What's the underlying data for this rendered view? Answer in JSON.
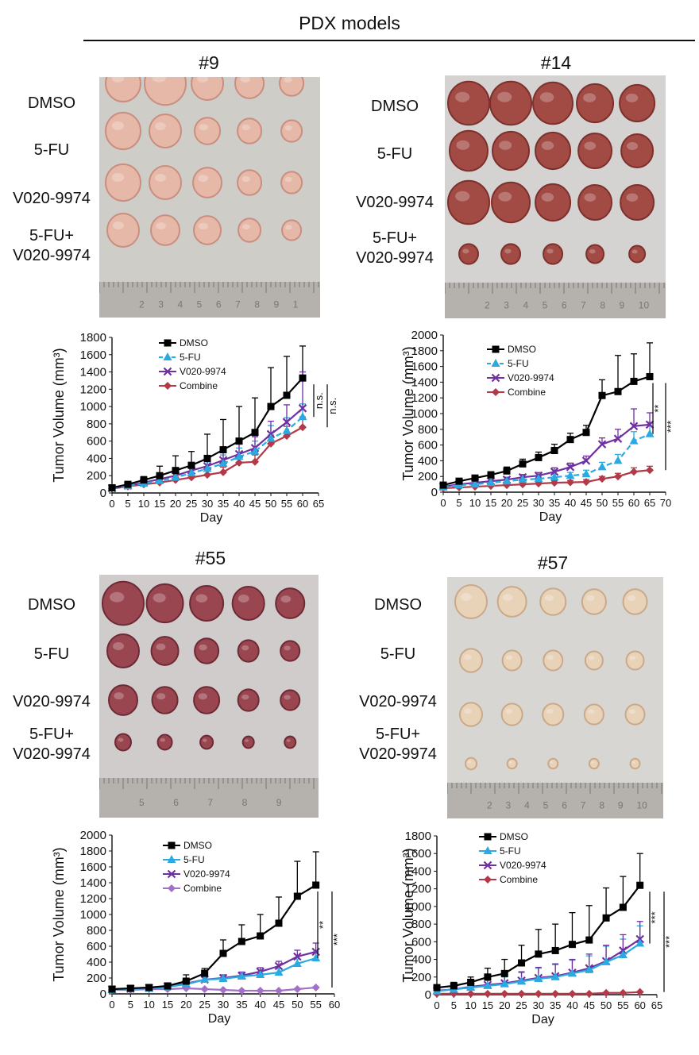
{
  "figure": {
    "header": "PDX models",
    "row_labels": [
      "DMSO",
      "5-FU",
      "V020-9974",
      "5-FU+",
      "V020-9974"
    ]
  },
  "panels": [
    {
      "id": "9",
      "title": "#9",
      "photo": {
        "tissue_color": "#e6b8a8",
        "tissue_edge": "#c98e80",
        "background": "#cfcdc8",
        "ruler_numbers": [
          "2",
          "3",
          "4",
          "5",
          "6",
          "7",
          "8",
          "9",
          "1"
        ]
      }
    },
    {
      "id": "14",
      "title": "#14",
      "photo": {
        "tissue_color": "#a24a44",
        "tissue_edge": "#7d302c",
        "background": "#d4d3d2",
        "ruler_numbers": [
          "2",
          "3",
          "4",
          "5",
          "6",
          "7",
          "8",
          "9",
          "10"
        ]
      }
    },
    {
      "id": "55",
      "title": "#55",
      "photo": {
        "tissue_color": "#9a4650",
        "tissue_edge": "#6e2a34",
        "background": "#cfcccb",
        "ruler_numbers": [
          "5",
          "6",
          "7",
          "8",
          "9"
        ]
      }
    },
    {
      "id": "57",
      "title": "#57",
      "photo": {
        "tissue_color": "#e8d2b8",
        "tissue_edge": "#c9a98a",
        "background": "#d8d6d2",
        "ruler_numbers": [
          "2",
          "3",
          "4",
          "5",
          "6",
          "7",
          "8",
          "9",
          "10"
        ]
      }
    }
  ],
  "chart_data": [
    {
      "panel": "#9",
      "type": "line",
      "title": "",
      "xlabel": "Day",
      "ylabel": "Tumor Volume (mm³)",
      "xlim": [
        0,
        65
      ],
      "ylim": [
        0,
        1800
      ],
      "xticks": [
        0,
        5,
        10,
        15,
        20,
        25,
        30,
        35,
        40,
        45,
        50,
        55,
        60,
        65
      ],
      "yticks": [
        0,
        200,
        400,
        600,
        800,
        1000,
        1200,
        1400,
        1600,
        1800
      ],
      "x": [
        0,
        5,
        10,
        15,
        20,
        25,
        30,
        35,
        40,
        45,
        50,
        55,
        60
      ],
      "series": [
        {
          "name": "DMSO",
          "color": "#000000",
          "marker": "square",
          "dash": false,
          "values": [
            60,
            100,
            150,
            200,
            260,
            320,
            400,
            500,
            600,
            700,
            1000,
            1130,
            1330
          ],
          "errors": [
            20,
            30,
            40,
            110,
            170,
            160,
            280,
            350,
            400,
            400,
            450,
            450,
            370
          ]
        },
        {
          "name": "5-FU",
          "color": "#29abe2",
          "marker": "triangle",
          "dash": true,
          "values": [
            55,
            80,
            110,
            140,
            180,
            230,
            280,
            340,
            420,
            480,
            630,
            720,
            880
          ],
          "errors": [
            20,
            30,
            30,
            40,
            50,
            70,
            80,
            100,
            100,
            120,
            150,
            150,
            150
          ]
        },
        {
          "name": "V020-9974",
          "color": "#7030a0",
          "marker": "x",
          "dash": false,
          "values": [
            55,
            85,
            120,
            160,
            200,
            260,
            310,
            380,
            450,
            520,
            680,
            820,
            980
          ],
          "errors": [
            20,
            30,
            40,
            50,
            60,
            80,
            90,
            110,
            120,
            130,
            150,
            200,
            420
          ]
        },
        {
          "name": "Combine",
          "color": "#b23a48",
          "marker": "diamond",
          "dash": false,
          "values": [
            50,
            75,
            100,
            120,
            150,
            180,
            210,
            240,
            350,
            360,
            570,
            660,
            760
          ],
          "errors": [
            15,
            20,
            25,
            30,
            35,
            40,
            50,
            60,
            70,
            80,
            100,
            110,
            120
          ]
        }
      ],
      "significance": [
        {
          "label": "n.s.",
          "from": "5-FU",
          "to": "DMSO"
        },
        {
          "label": "n.s.",
          "from": "Combine",
          "to": "DMSO"
        }
      ]
    },
    {
      "panel": "#14",
      "type": "line",
      "title": "",
      "xlabel": "Day",
      "ylabel": "Tumor Volume (mm³)",
      "xlim": [
        0,
        70
      ],
      "ylim": [
        0,
        2000
      ],
      "xticks": [
        0,
        5,
        10,
        15,
        20,
        25,
        30,
        35,
        40,
        45,
        50,
        55,
        60,
        65,
        70
      ],
      "yticks": [
        0,
        200,
        400,
        600,
        800,
        1000,
        1200,
        1400,
        1600,
        1800,
        2000
      ],
      "x": [
        0,
        5,
        10,
        15,
        20,
        25,
        30,
        35,
        40,
        45,
        50,
        55,
        60,
        65
      ],
      "series": [
        {
          "name": "DMSO",
          "color": "#000000",
          "marker": "square",
          "dash": false,
          "values": [
            90,
            140,
            180,
            220,
            270,
            360,
            440,
            530,
            670,
            760,
            1230,
            1280,
            1410,
            1470
          ],
          "errors": [
            20,
            20,
            30,
            40,
            50,
            60,
            70,
            80,
            80,
            90,
            200,
            460,
            350,
            430
          ]
        },
        {
          "name": "5-FU",
          "color": "#29abe2",
          "marker": "triangle",
          "dash": true,
          "values": [
            60,
            90,
            100,
            120,
            140,
            160,
            170,
            190,
            210,
            230,
            320,
            400,
            650,
            740
          ],
          "errors": [
            15,
            20,
            20,
            25,
            25,
            30,
            30,
            40,
            40,
            50,
            60,
            80,
            120,
            150
          ]
        },
        {
          "name": "V020-9974",
          "color": "#7030a0",
          "marker": "x",
          "dash": false,
          "values": [
            70,
            100,
            120,
            140,
            160,
            190,
            210,
            260,
            320,
            400,
            610,
            680,
            840,
            860
          ],
          "errors": [
            15,
            20,
            20,
            25,
            30,
            35,
            40,
            50,
            50,
            60,
            80,
            120,
            220,
            150
          ]
        },
        {
          "name": "Combine",
          "color": "#b23a48",
          "marker": "diamond",
          "dash": false,
          "values": [
            50,
            60,
            70,
            80,
            90,
            100,
            110,
            120,
            125,
            130,
            170,
            200,
            260,
            280
          ],
          "errors": [
            10,
            10,
            15,
            15,
            20,
            20,
            20,
            25,
            25,
            30,
            30,
            40,
            50,
            50
          ]
        }
      ],
      "significance": [
        {
          "label": "**",
          "from": "5-FU",
          "to": "DMSO"
        },
        {
          "label": "***",
          "from": "Combine",
          "to": "DMSO"
        }
      ]
    },
    {
      "panel": "#55",
      "type": "line",
      "title": "",
      "xlabel": "Day",
      "ylabel": "Tumor Volume (mm³)",
      "xlim": [
        0,
        60
      ],
      "ylim": [
        0,
        2000
      ],
      "xticks": [
        0,
        5,
        10,
        15,
        20,
        25,
        30,
        35,
        40,
        45,
        50,
        55,
        60
      ],
      "yticks": [
        0,
        200,
        400,
        600,
        800,
        1000,
        1200,
        1400,
        1600,
        1800,
        2000
      ],
      "x": [
        0,
        5,
        10,
        15,
        20,
        25,
        30,
        35,
        40,
        45,
        50,
        55
      ],
      "series": [
        {
          "name": "DMSO",
          "color": "#000000",
          "marker": "square",
          "dash": false,
          "values": [
            60,
            70,
            80,
            100,
            160,
            260,
            510,
            660,
            730,
            890,
            1230,
            1370
          ],
          "errors": [
            10,
            15,
            20,
            30,
            80,
            60,
            170,
            210,
            270,
            330,
            440,
            420
          ]
        },
        {
          "name": "5-FU",
          "color": "#29abe2",
          "marker": "triangle",
          "dash": false,
          "values": [
            50,
            60,
            70,
            90,
            120,
            180,
            190,
            220,
            240,
            270,
            380,
            450
          ],
          "errors": [
            10,
            10,
            15,
            20,
            30,
            30,
            35,
            40,
            40,
            50,
            60,
            80
          ]
        },
        {
          "name": "V020-9974",
          "color": "#7030a0",
          "marker": "x",
          "dash": false,
          "values": [
            55,
            65,
            75,
            95,
            130,
            180,
            200,
            230,
            280,
            350,
            470,
            530
          ],
          "errors": [
            10,
            10,
            15,
            20,
            30,
            35,
            40,
            45,
            50,
            60,
            80,
            110
          ]
        },
        {
          "name": "Combine",
          "color": "#a370c8",
          "marker": "diamond",
          "dash": false,
          "values": [
            50,
            50,
            60,
            60,
            70,
            60,
            50,
            40,
            40,
            40,
            60,
            80
          ],
          "errors": [
            5,
            5,
            5,
            5,
            5,
            5,
            5,
            5,
            5,
            5,
            10,
            10
          ]
        }
      ],
      "significance": [
        {
          "label": "**",
          "from": "5-FU",
          "to": "DMSO"
        },
        {
          "label": "***",
          "from": "Combine",
          "to": "DMSO"
        }
      ]
    },
    {
      "panel": "#57",
      "type": "line",
      "title": "",
      "xlabel": "Day",
      "ylabel": "Tumor Volume (mm³)",
      "xlim": [
        0,
        65
      ],
      "ylim": [
        0,
        1800
      ],
      "xticks": [
        0,
        5,
        10,
        15,
        20,
        25,
        30,
        35,
        40,
        45,
        50,
        55,
        60,
        65
      ],
      "yticks": [
        0,
        200,
        400,
        600,
        800,
        1000,
        1200,
        1400,
        1600,
        1800
      ],
      "x": [
        0,
        5,
        10,
        15,
        20,
        25,
        30,
        35,
        40,
        45,
        50,
        55,
        60
      ],
      "series": [
        {
          "name": "DMSO",
          "color": "#000000",
          "marker": "square",
          "dash": false,
          "values": [
            80,
            100,
            140,
            200,
            240,
            360,
            460,
            500,
            570,
            620,
            870,
            990,
            1240
          ],
          "errors": [
            20,
            40,
            60,
            100,
            160,
            200,
            280,
            300,
            360,
            390,
            340,
            350,
            360
          ]
        },
        {
          "name": "5-FU",
          "color": "#29abe2",
          "marker": "triangle",
          "dash": false,
          "values": [
            40,
            60,
            80,
            100,
            120,
            150,
            180,
            200,
            240,
            280,
            370,
            450,
            580
          ],
          "errors": [
            20,
            30,
            40,
            60,
            80,
            100,
            120,
            140,
            150,
            160,
            180,
            180,
            200
          ]
        },
        {
          "name": "V020-9974",
          "color": "#7030a0",
          "marker": "x",
          "dash": false,
          "values": [
            45,
            60,
            90,
            110,
            130,
            160,
            190,
            210,
            250,
            300,
            380,
            500,
            630
          ],
          "errors": [
            20,
            30,
            40,
            60,
            80,
            100,
            120,
            140,
            150,
            160,
            180,
            180,
            200
          ]
        },
        {
          "name": "Combine",
          "color": "#b23a48",
          "marker": "diamond",
          "dash": false,
          "values": [
            10,
            10,
            10,
            10,
            10,
            10,
            10,
            10,
            10,
            10,
            20,
            20,
            30
          ],
          "errors": [
            5,
            5,
            5,
            5,
            5,
            5,
            5,
            5,
            5,
            5,
            5,
            5,
            5
          ]
        }
      ],
      "significance": [
        {
          "label": "***",
          "from": "5-FU",
          "to": "DMSO"
        },
        {
          "label": "***",
          "from": "Combine",
          "to": "DMSO"
        }
      ]
    }
  ]
}
